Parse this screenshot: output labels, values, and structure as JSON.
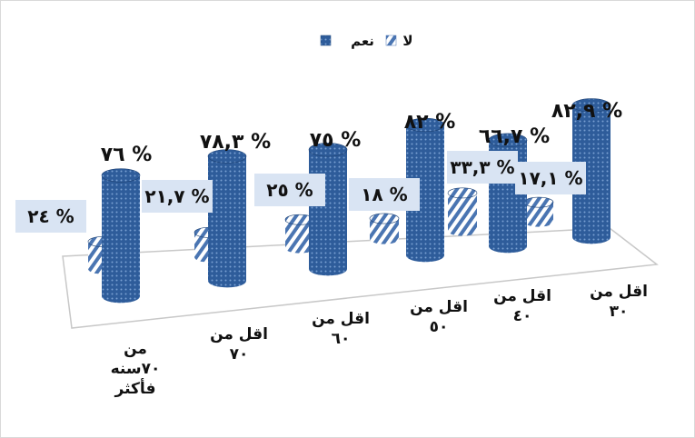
{
  "chart_data": {
    "type": "bar",
    "style": "3d-cylinder",
    "categories": [
      "اقل من ٣٠",
      "اقل من ٤٠",
      "اقل من ٥٠",
      "اقل من ٦٠",
      "اقل من ٧٠",
      "من ٧٠سنه فأكثر"
    ],
    "category_lines": [
      [
        "اقل من",
        "٣٠"
      ],
      [
        "اقل من",
        "٤٠"
      ],
      [
        "اقل من",
        "٥٠"
      ],
      [
        "اقل من",
        "٦٠"
      ],
      [
        "اقل من",
        "٧٠"
      ],
      [
        "من",
        "٧٠سنه",
        "فأكثر"
      ]
    ],
    "series": [
      {
        "name": "نعم",
        "values": [
          82.9,
          66.7,
          82,
          75,
          78.3,
          76
        ],
        "labels": [
          "% ٨٢,٩",
          "% ٦٦,٧",
          "% ٨٢",
          "% ٧٥",
          "% ٧٨,٣",
          "% ٧٦"
        ],
        "color": "#2e5c9a"
      },
      {
        "name": "لا",
        "values": [
          17.1,
          33.3,
          18,
          25,
          21.7,
          24
        ],
        "labels": [
          "% ١٧,١",
          "% ٣٣,٣",
          "% ١٨",
          "% ٢٥",
          "% ٢١,٧",
          "% ٢٤"
        ],
        "color": "#5b86c0"
      }
    ],
    "ylim": [
      0,
      100
    ],
    "legend_position": "top-center",
    "grid": false,
    "title": "",
    "xlabel": "",
    "ylabel": "",
    "colors": {
      "yes": "#2e5c9a",
      "no": "#5b86c0",
      "label_box": "#d9e4f3",
      "floor_line": "#c0c0c0"
    }
  }
}
